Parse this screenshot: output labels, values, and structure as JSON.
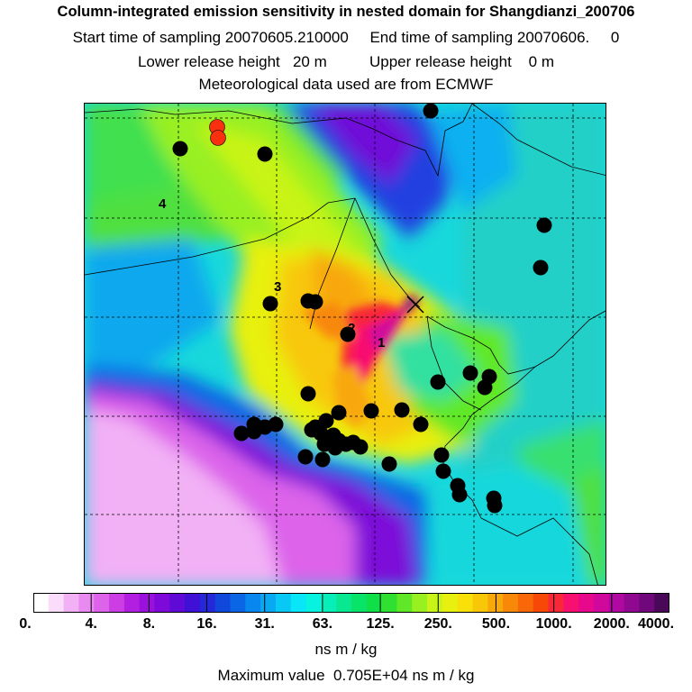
{
  "title": {
    "line1": "Column-integrated emission sensitivity in nested domain for Shangdianzi_200706",
    "line2": "Start time of sampling 20070605.210000     End time of sampling 20070606.     0",
    "line3": "Lower release height   20 m          Upper release height    0 m",
    "line4": "Meteorological data used are from ECMWF"
  },
  "map": {
    "contour_labels": [
      "4",
      "3",
      "2",
      "1"
    ],
    "release_marker": "x-cross"
  },
  "colorbar": {
    "labels": [
      "0.",
      "4.",
      "8.",
      "16.",
      "31.",
      "63.",
      "125.",
      "250.",
      "500.",
      "1000.",
      "2000.",
      "4000."
    ],
    "colors": [
      "#ffffff",
      "#fbdcfb",
      "#f2b0f5",
      "#e98af0",
      "#dc63ea",
      "#cc3ee3",
      "#b31fe0",
      "#9a10dd",
      "#7d0ad8",
      "#5f0ad6",
      "#3f10d6",
      "#2428d8",
      "#1048dc",
      "#0a66e4",
      "#0888ee",
      "#08a8f2",
      "#08c8f6",
      "#08e6f8",
      "#08f2e0",
      "#08eeb8",
      "#08e890",
      "#08e468",
      "#10e048",
      "#30e030",
      "#60e828",
      "#98f020",
      "#c8f418",
      "#e8f010",
      "#f8e008",
      "#f8c808",
      "#f8a808",
      "#f88808",
      "#f86808",
      "#f84808",
      "#f82838",
      "#f81070",
      "#e8088c",
      "#d0089c",
      "#b008a0",
      "#900890",
      "#70087c",
      "#4a0858"
    ]
  },
  "units": "ns m / kg",
  "max_value_text": "Maximum value  0.705E+04 ns m / kg"
}
